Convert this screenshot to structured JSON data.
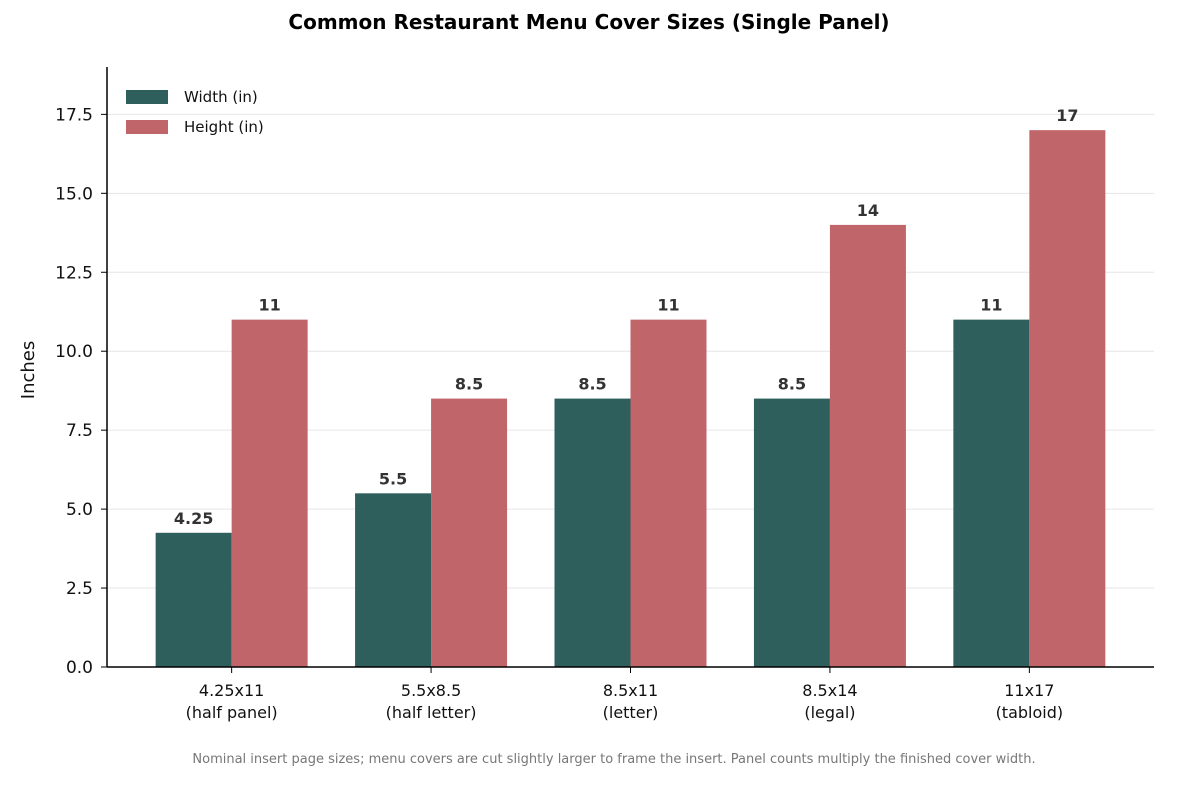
{
  "chart_data": {
    "type": "bar",
    "title": "Common Restaurant Menu Cover Sizes (Single Panel)",
    "ylabel": "Inches",
    "xlabel": "",
    "categories": [
      [
        "4.25x11",
        "(half panel)"
      ],
      [
        "5.5x8.5",
        "(half letter)"
      ],
      [
        "8.5x11",
        "(letter)"
      ],
      [
        "8.5x14",
        "(legal)"
      ],
      [
        "11x17",
        "(tabloid)"
      ]
    ],
    "series": [
      {
        "name": "Width (in)",
        "color": "#2e5f5c",
        "values": [
          4.25,
          5.5,
          8.5,
          8.5,
          11
        ],
        "labels": [
          "4.25",
          "5.5",
          "8.5",
          "8.5",
          "11"
        ]
      },
      {
        "name": "Height (in)",
        "color": "#c0666a",
        "values": [
          11,
          8.5,
          11,
          14,
          17
        ],
        "labels": [
          "11",
          "8.5",
          "11",
          "14",
          "17"
        ]
      }
    ],
    "ylim": [
      0,
      19
    ],
    "yticks": [
      "0.0",
      "2.5",
      "5.0",
      "7.5",
      "10.0",
      "12.5",
      "15.0",
      "17.5"
    ],
    "grid": "horizontal",
    "legend_position": "top-left"
  },
  "footnote": "Nominal insert page sizes; menu covers are cut slightly larger to frame the insert. Panel counts multiply the finished cover width."
}
